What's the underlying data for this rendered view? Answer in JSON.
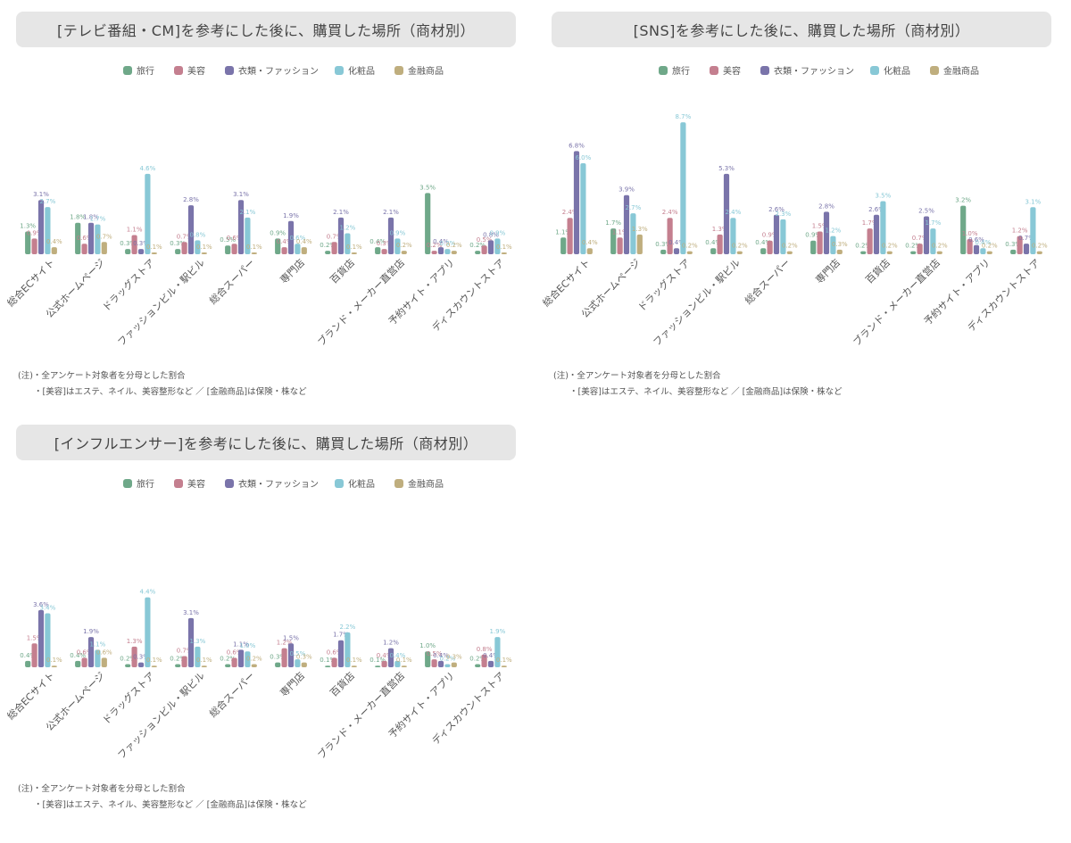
{
  "legend": [
    "旅行",
    "美容",
    "衣類・ファッション",
    "化粧品",
    "金融商品"
  ],
  "colors": [
    "#6fa889",
    "#c47f8f",
    "#7a74aa",
    "#88c8d6",
    "#bfae7e"
  ],
  "notes": {
    "line1": "(注)・全アンケート対象者を分母とした割合",
    "line2": "・[美容]はエステ、ネイル、美容整形など ／ [金融商品]は保険・株など"
  },
  "chart_data": [
    {
      "type": "bar",
      "title": "[テレビ番組・CM]を参考にした後に、購買した場所（商材別）",
      "unit": "%",
      "categories": [
        "総合ECサイト",
        "公式ホームページ",
        "ドラッグストア",
        "ファッションビル・駅ビル",
        "総合スーパー",
        "専門店",
        "百貨店",
        "ブランド・メーカー直営店",
        "予約サイト・アプリ",
        "ディスカウントストア"
      ],
      "series": [
        {
          "name": "旅行",
          "values": [
            1.3,
            1.8,
            0.3,
            0.3,
            0.5,
            0.9,
            0.2,
            0.4,
            3.5,
            0.2
          ]
        },
        {
          "name": "美容",
          "values": [
            0.9,
            0.6,
            1.1,
            0.7,
            0.6,
            0.4,
            0.7,
            0.3,
            0.2,
            0.5
          ]
        },
        {
          "name": "衣類・ファッション",
          "values": [
            3.1,
            1.8,
            0.3,
            2.8,
            3.1,
            1.9,
            2.1,
            2.1,
            0.4,
            0.8
          ]
        },
        {
          "name": "化粧品",
          "values": [
            2.7,
            1.7,
            4.6,
            0.8,
            2.1,
            0.6,
            1.2,
            0.9,
            0.3,
            0.9
          ]
        },
        {
          "name": "金融商品",
          "values": [
            0.4,
            0.7,
            0.1,
            0.1,
            0.1,
            0.4,
            0.1,
            0.2,
            0.2,
            0.1
          ]
        }
      ]
    },
    {
      "type": "bar",
      "title": "[SNS]を参考にした後に、購買した場所（商材別）",
      "unit": "%",
      "categories": [
        "総合ECサイト",
        "公式ホームページ",
        "ドラッグストア",
        "ファッションビル・駅ビル",
        "総合スーパー",
        "専門店",
        "百貨店",
        "ブランド・メーカー直営店",
        "予約サイト・アプリ",
        "ディスカウントストア"
      ],
      "series": [
        {
          "name": "旅行",
          "values": [
            1.1,
            1.7,
            0.3,
            0.4,
            0.4,
            0.9,
            0.2,
            0.2,
            3.2,
            0.3
          ]
        },
        {
          "name": "美容",
          "values": [
            2.4,
            1.1,
            2.4,
            1.3,
            0.9,
            1.5,
            1.7,
            0.7,
            1.0,
            1.2
          ]
        },
        {
          "name": "衣類・ファッション",
          "values": [
            6.8,
            3.9,
            0.4,
            5.3,
            2.6,
            2.8,
            2.6,
            2.5,
            0.6,
            0.7
          ]
        },
        {
          "name": "化粧品",
          "values": [
            6.0,
            2.7,
            8.7,
            2.4,
            2.3,
            1.2,
            3.5,
            1.7,
            0.4,
            3.1
          ]
        },
        {
          "name": "金融商品",
          "values": [
            0.4,
            1.3,
            0.2,
            0.2,
            0.2,
            0.3,
            0.2,
            0.2,
            0.2,
            0.2
          ]
        }
      ]
    },
    {
      "type": "bar",
      "title": "[インフルエンサー]を参考にした後に、購買した場所（商材別）",
      "unit": "%",
      "categories": [
        "総合ECサイト",
        "公式ホームページ",
        "ドラッグストア",
        "ファッションビル・駅ビル",
        "総合スーパー",
        "専門店",
        "百貨店",
        "ブランド・メーカー直営店",
        "予約サイト・アプリ",
        "ディスカウントストア"
      ],
      "series": [
        {
          "name": "旅行",
          "values": [
            0.4,
            0.4,
            0.2,
            0.2,
            0.2,
            0.3,
            0.1,
            0.1,
            1.0,
            0.2
          ]
        },
        {
          "name": "美容",
          "values": [
            1.5,
            0.6,
            1.3,
            0.7,
            0.6,
            1.2,
            0.6,
            0.4,
            0.5,
            0.8
          ]
        },
        {
          "name": "衣類・ファッション",
          "values": [
            3.6,
            1.9,
            0.3,
            3.1,
            1.1,
            1.5,
            1.7,
            1.2,
            0.4,
            0.4
          ]
        },
        {
          "name": "化粧品",
          "values": [
            3.4,
            1.1,
            4.4,
            1.3,
            1.0,
            0.5,
            2.2,
            0.4,
            0.2,
            1.9
          ]
        },
        {
          "name": "金融商品",
          "values": [
            0.1,
            0.6,
            0.1,
            0.1,
            0.2,
            0.3,
            0.1,
            0.1,
            0.3,
            0.1
          ]
        }
      ]
    }
  ]
}
